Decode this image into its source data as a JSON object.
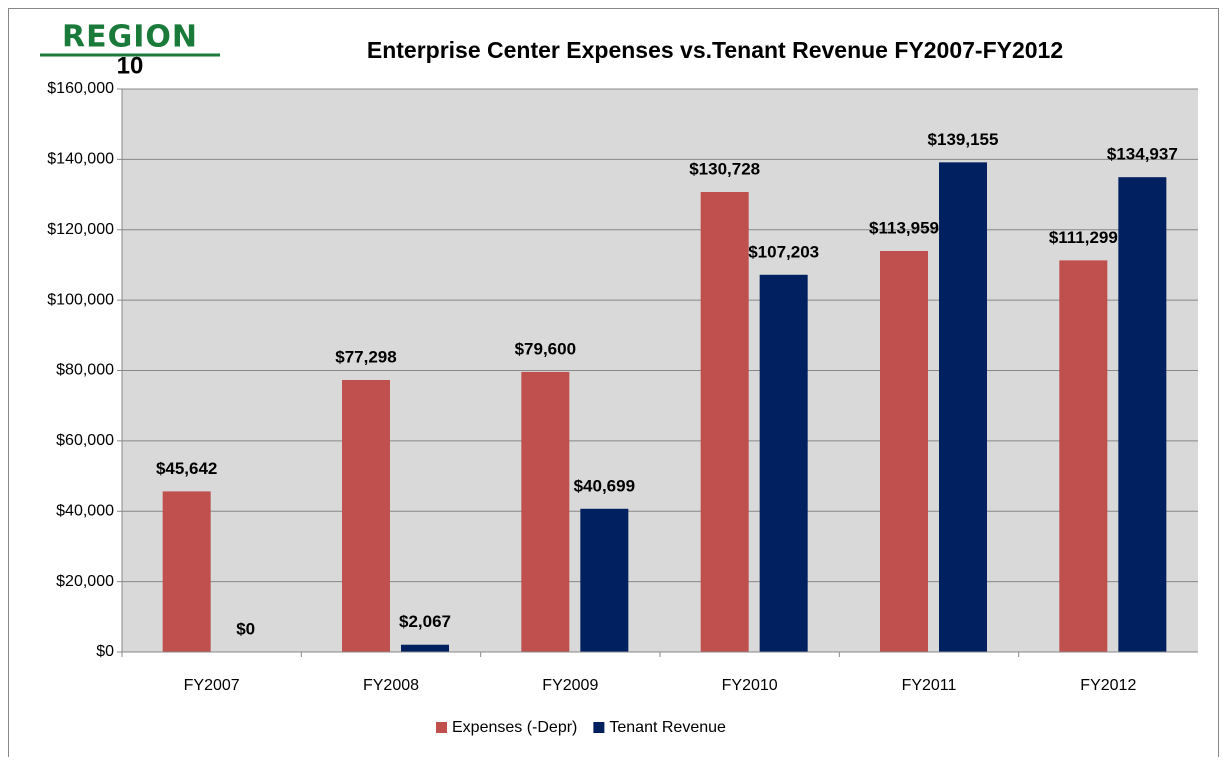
{
  "logo": {
    "line1": "REGION",
    "line2": "10"
  },
  "chart_data": {
    "type": "bar",
    "title": "Enterprise Center Expenses vs.Tenant Revenue  FY2007-FY2012",
    "categories": [
      "FY2007",
      "FY2008",
      "FY2009",
      "FY2010",
      "FY2011",
      "FY2012"
    ],
    "series": [
      {
        "name": "Expenses (-Depr)",
        "color": "#c0504d",
        "values": [
          45642,
          77298,
          79600,
          130728,
          113959,
          111299
        ],
        "value_labels": [
          "$45,642",
          "$77,298",
          "$79,600",
          "$130,728",
          "$113,959",
          "$111,299"
        ]
      },
      {
        "name": "Tenant Revenue",
        "color": "#002060",
        "values": [
          0,
          2067,
          40699,
          107203,
          139155,
          134937
        ],
        "value_labels": [
          "$0",
          "$2,067",
          "$40,699",
          "$107,203",
          "$139,155",
          "$134,937"
        ]
      }
    ],
    "ylim": [
      0,
      160000
    ],
    "yticks": [
      {
        "value": 0,
        "label": "$0"
      },
      {
        "value": 20000,
        "label": "$20,000"
      },
      {
        "value": 40000,
        "label": "$40,000"
      },
      {
        "value": 60000,
        "label": "$60,000"
      },
      {
        "value": 80000,
        "label": "$80,000"
      },
      {
        "value": 100000,
        "label": "$100,000"
      },
      {
        "value": 120000,
        "label": "$120,000"
      },
      {
        "value": 140000,
        "label": "$140,000"
      },
      {
        "value": 160000,
        "label": "$160,000"
      }
    ],
    "grid": true,
    "legend": "bottom"
  }
}
